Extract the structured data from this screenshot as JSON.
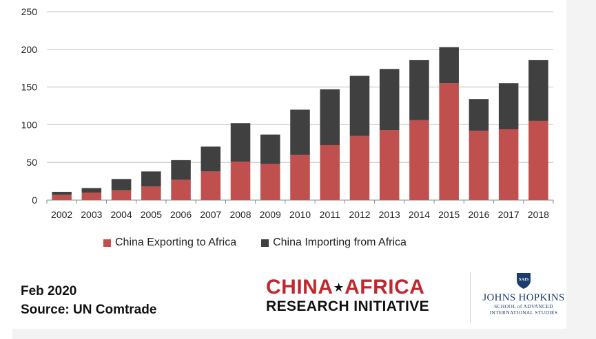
{
  "chart_data": {
    "type": "bar",
    "stacked": true,
    "categories": [
      "2002",
      "2003",
      "2004",
      "2005",
      "2006",
      "2007",
      "2008",
      "2009",
      "2010",
      "2011",
      "2012",
      "2013",
      "2014",
      "2015",
      "2016",
      "2017",
      "2018"
    ],
    "series": [
      {
        "name": "China Exporting to Africa",
        "color": "#c0504d",
        "values": [
          7,
          10,
          13,
          18,
          27,
          38,
          51,
          48,
          60,
          73,
          85,
          93,
          106,
          155,
          92,
          94,
          105
        ]
      },
      {
        "name": "China Importing from Africa",
        "color": "#404040",
        "values": [
          4,
          6,
          15,
          20,
          26,
          33,
          51,
          39,
          60,
          74,
          80,
          81,
          80,
          48,
          42,
          61,
          81
        ]
      }
    ],
    "ylim": [
      0,
      250
    ],
    "yticks": [
      0,
      50,
      100,
      150,
      200,
      250
    ],
    "grid": true,
    "legend": "bottom"
  },
  "footer": {
    "date": "Feb 2020",
    "source": "Source: UN Comtrade"
  },
  "logo": {
    "line1_a": "CHINA",
    "line1_b": "AFRICA",
    "line2": "RESEARCH INITIATIVE",
    "jhu_name": "JOHNS HOPKINS",
    "jhu_seal": "SAIS",
    "jhu_sub1": "SCHOOL of ADVANCED",
    "jhu_sub2": "INTERNATIONAL STUDIES"
  }
}
